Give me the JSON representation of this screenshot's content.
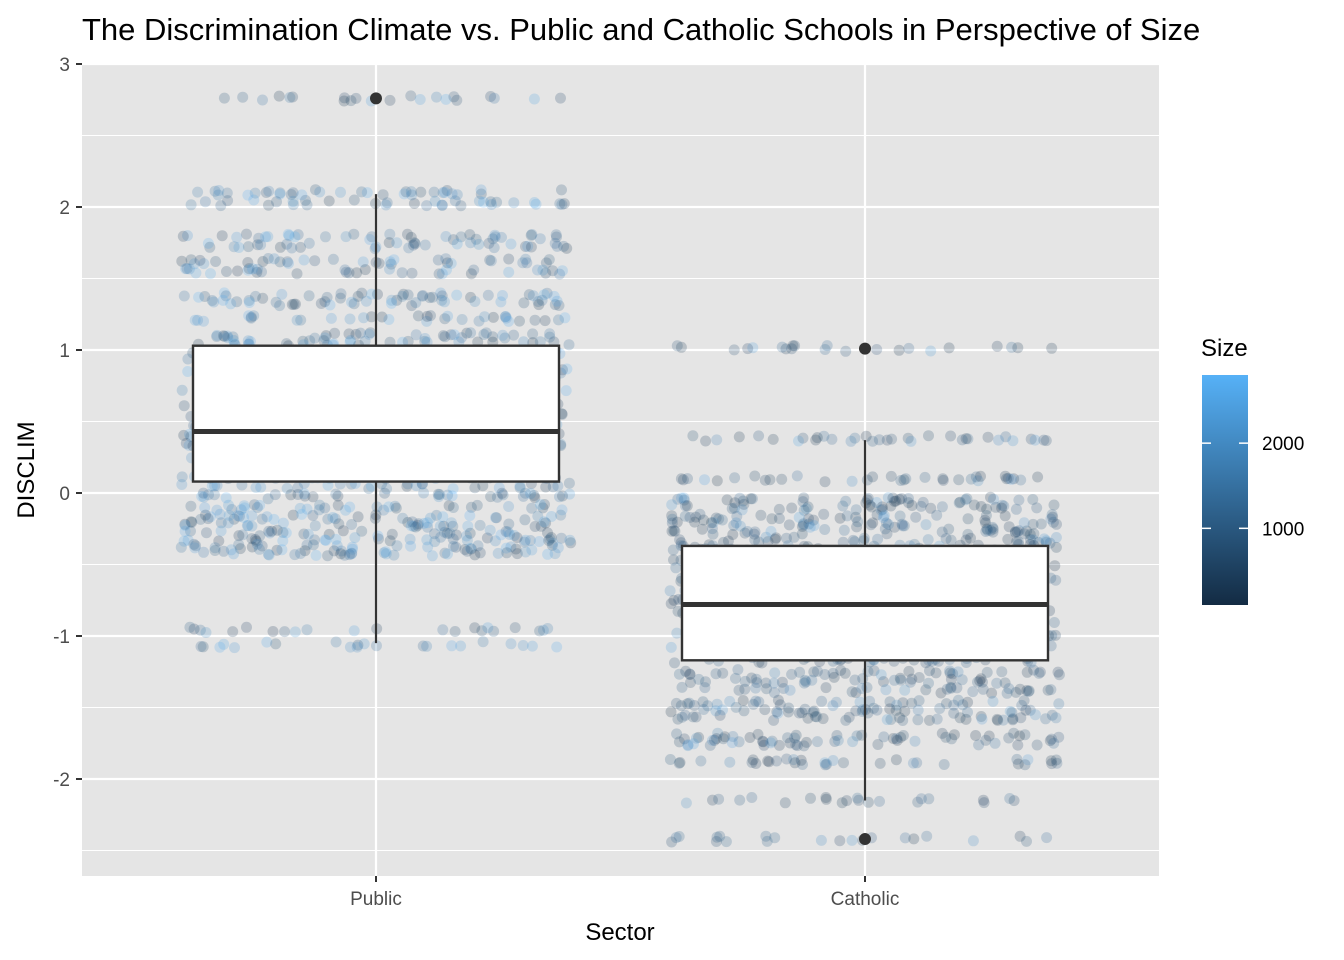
{
  "chart_data": {
    "type": "boxplot",
    "title": "The Discrimination Climate vs. Public and Catholic Schools in Perspective of Size",
    "xlabel": "Sector",
    "ylabel": "DISCLIM",
    "categories": [
      "Public",
      "Catholic"
    ],
    "ylim": [
      -2.6,
      3.0
    ],
    "yticks": [
      -2,
      -1,
      0,
      1,
      2,
      3
    ],
    "grid": true,
    "background": "#e5e5e5",
    "boxes": [
      {
        "category": "Public",
        "whisker_low": -1.05,
        "q1": 0.08,
        "median": 0.43,
        "q3": 1.03,
        "whisker_high": 2.09,
        "outliers": [
          2.76
        ]
      },
      {
        "category": "Catholic",
        "whisker_low": -2.15,
        "q1": -1.17,
        "median": -0.78,
        "q3": -0.37,
        "whisker_high": 0.37,
        "outliers": [
          1.01,
          -2.42
        ]
      }
    ],
    "jitter_levels": {
      "Public": [
        2.76,
        2.1,
        2.03,
        1.79,
        1.73,
        1.62,
        1.55,
        1.38,
        1.33,
        1.22,
        1.1,
        1.05,
        0.98,
        0.92,
        0.85,
        0.78,
        0.7,
        0.62,
        0.55,
        0.48,
        0.4,
        0.33,
        0.26,
        0.19,
        0.12,
        0.05,
        -0.02,
        -0.1,
        -0.17,
        -0.22,
        -0.28,
        -0.33,
        -0.38,
        -0.42,
        -0.96,
        -1.06
      ],
      "Catholic": [
        1.01,
        0.38,
        0.1,
        -0.05,
        -0.1,
        -0.17,
        -0.22,
        -0.27,
        -0.33,
        -0.38,
        -0.45,
        -0.52,
        -0.6,
        -0.68,
        -0.76,
        -0.84,
        -0.92,
        -1.0,
        -1.08,
        -1.17,
        -1.25,
        -1.31,
        -1.38,
        -1.47,
        -1.52,
        -1.57,
        -1.7,
        -1.75,
        -1.88,
        -2.15,
        -2.42
      ]
    },
    "legend": {
      "title": "Size",
      "position": "right",
      "type": "colorbar",
      "labels": [
        "2000",
        "1000"
      ],
      "label_values": [
        2000,
        1000
      ],
      "range": [
        100,
        2800
      ],
      "color_low": "#132b43",
      "color_high": "#56b1f7"
    }
  }
}
